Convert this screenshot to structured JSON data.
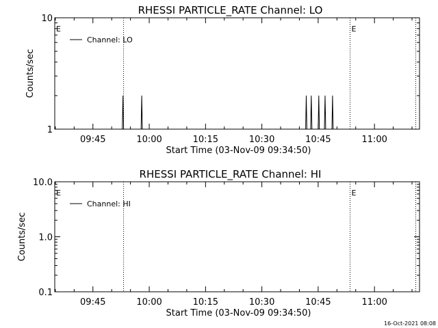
{
  "chart_data": [
    {
      "type": "line",
      "title": "RHESSI PARTICLE_RATE Channel: LO",
      "xlabel": "Start Time (03-Nov-09 09:34:50)",
      "ylabel": "Counts/sec",
      "y_scale": "log",
      "ylim": [
        1,
        10
      ],
      "xlim": [
        "09:34:50",
        "11:12:00"
      ],
      "x_ticks": [
        "09:45",
        "10:00",
        "10:15",
        "10:30",
        "10:45",
        "11:00"
      ],
      "y_ticks": [
        "1",
        "10"
      ],
      "legend": {
        "position": "top-left",
        "label": "Channel: LO"
      },
      "edge_markers": [
        {
          "label": "E",
          "time": "09:34:50"
        },
        {
          "label": "E",
          "time": "10:53:30"
        }
      ],
      "vlines": [
        "09:53:10",
        "10:53:30",
        "11:11:00"
      ],
      "series": [
        {
          "name": "Channel: LO",
          "points": [
            [
              "09:52:50",
              1
            ],
            [
              "09:53:00",
              2
            ],
            [
              "09:53:10",
              1
            ],
            [
              "09:57:50",
              1
            ],
            [
              "09:58:00",
              2
            ],
            [
              "09:58:10",
              1
            ],
            [
              "10:41:40",
              1
            ],
            [
              "10:41:50",
              2
            ],
            [
              "10:42:00",
              1
            ],
            [
              "10:43:00",
              1
            ],
            [
              "10:43:10",
              2
            ],
            [
              "10:43:20",
              1
            ],
            [
              "10:45:00",
              1
            ],
            [
              "10:45:10",
              2
            ],
            [
              "10:45:20",
              1
            ],
            [
              "10:46:40",
              1
            ],
            [
              "10:46:50",
              2
            ],
            [
              "10:47:00",
              1
            ],
            [
              "10:48:40",
              1
            ],
            [
              "10:48:50",
              2
            ],
            [
              "10:49:00",
              1
            ]
          ]
        }
      ]
    },
    {
      "type": "line",
      "title": "RHESSI PARTICLE_RATE Channel: HI",
      "xlabel": "Start Time (03-Nov-09 09:34:50)",
      "ylabel": "Counts/sec",
      "y_scale": "log",
      "ylim": [
        0.1,
        10
      ],
      "xlim": [
        "09:34:50",
        "11:12:00"
      ],
      "x_ticks": [
        "09:45",
        "10:00",
        "10:15",
        "10:30",
        "10:45",
        "11:00"
      ],
      "y_ticks": [
        "0.1",
        "1.0",
        "10.0"
      ],
      "legend": {
        "position": "top-left",
        "label": "Channel: HI"
      },
      "edge_markers": [
        {
          "label": "E",
          "time": "09:34:50"
        },
        {
          "label": "E",
          "time": "10:53:30"
        }
      ],
      "vlines": [
        "09:53:10",
        "10:53:30",
        "11:11:00"
      ],
      "series": [
        {
          "name": "Channel: HI",
          "points": []
        }
      ]
    }
  ],
  "footer": {
    "timestamp": "16-Oct-2021 08:08"
  }
}
